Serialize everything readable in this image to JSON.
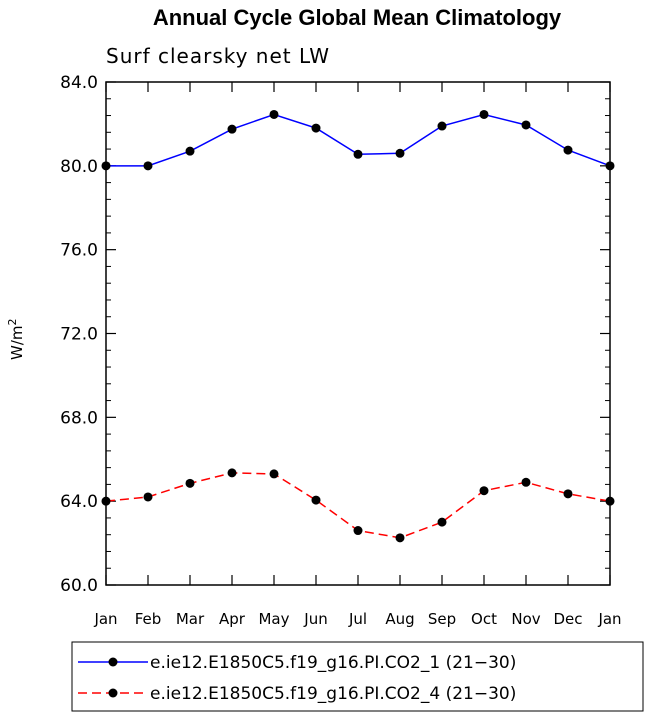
{
  "chart_data": {
    "type": "line",
    "title": "Annual Cycle Global Mean Climatology",
    "subtitle": "Surf clearsky net LW",
    "ylabel": "W/m",
    "ylabel_sup": "2",
    "categories": [
      "Jan",
      "Feb",
      "Mar",
      "Apr",
      "May",
      "Jun",
      "Jul",
      "Aug",
      "Sep",
      "Oct",
      "Nov",
      "Dec",
      "Jan"
    ],
    "ylim": [
      60,
      84
    ],
    "yticks": [
      "60.0",
      "64.0",
      "68.0",
      "72.0",
      "76.0",
      "80.0",
      "84.0"
    ],
    "grid": false,
    "legend_placement": "bottom",
    "series": [
      {
        "name": "e.ie12.E1850C5.f19_g16.PI.CO2_1 (21−30)",
        "color": "#0000ff",
        "dash": "solid",
        "values": [
          80.0,
          80.0,
          80.7,
          81.75,
          82.45,
          81.8,
          80.55,
          80.6,
          81.9,
          82.45,
          81.95,
          80.75,
          80.0
        ]
      },
      {
        "name": "e.ie12.E1850C5.f19_g16.PI.CO2_4 (21−30)",
        "color": "#ff0000",
        "dash": "dashed",
        "values": [
          64.0,
          64.2,
          64.85,
          65.35,
          65.3,
          64.05,
          62.6,
          62.25,
          63.0,
          64.5,
          64.9,
          64.35,
          64.0
        ]
      }
    ]
  }
}
